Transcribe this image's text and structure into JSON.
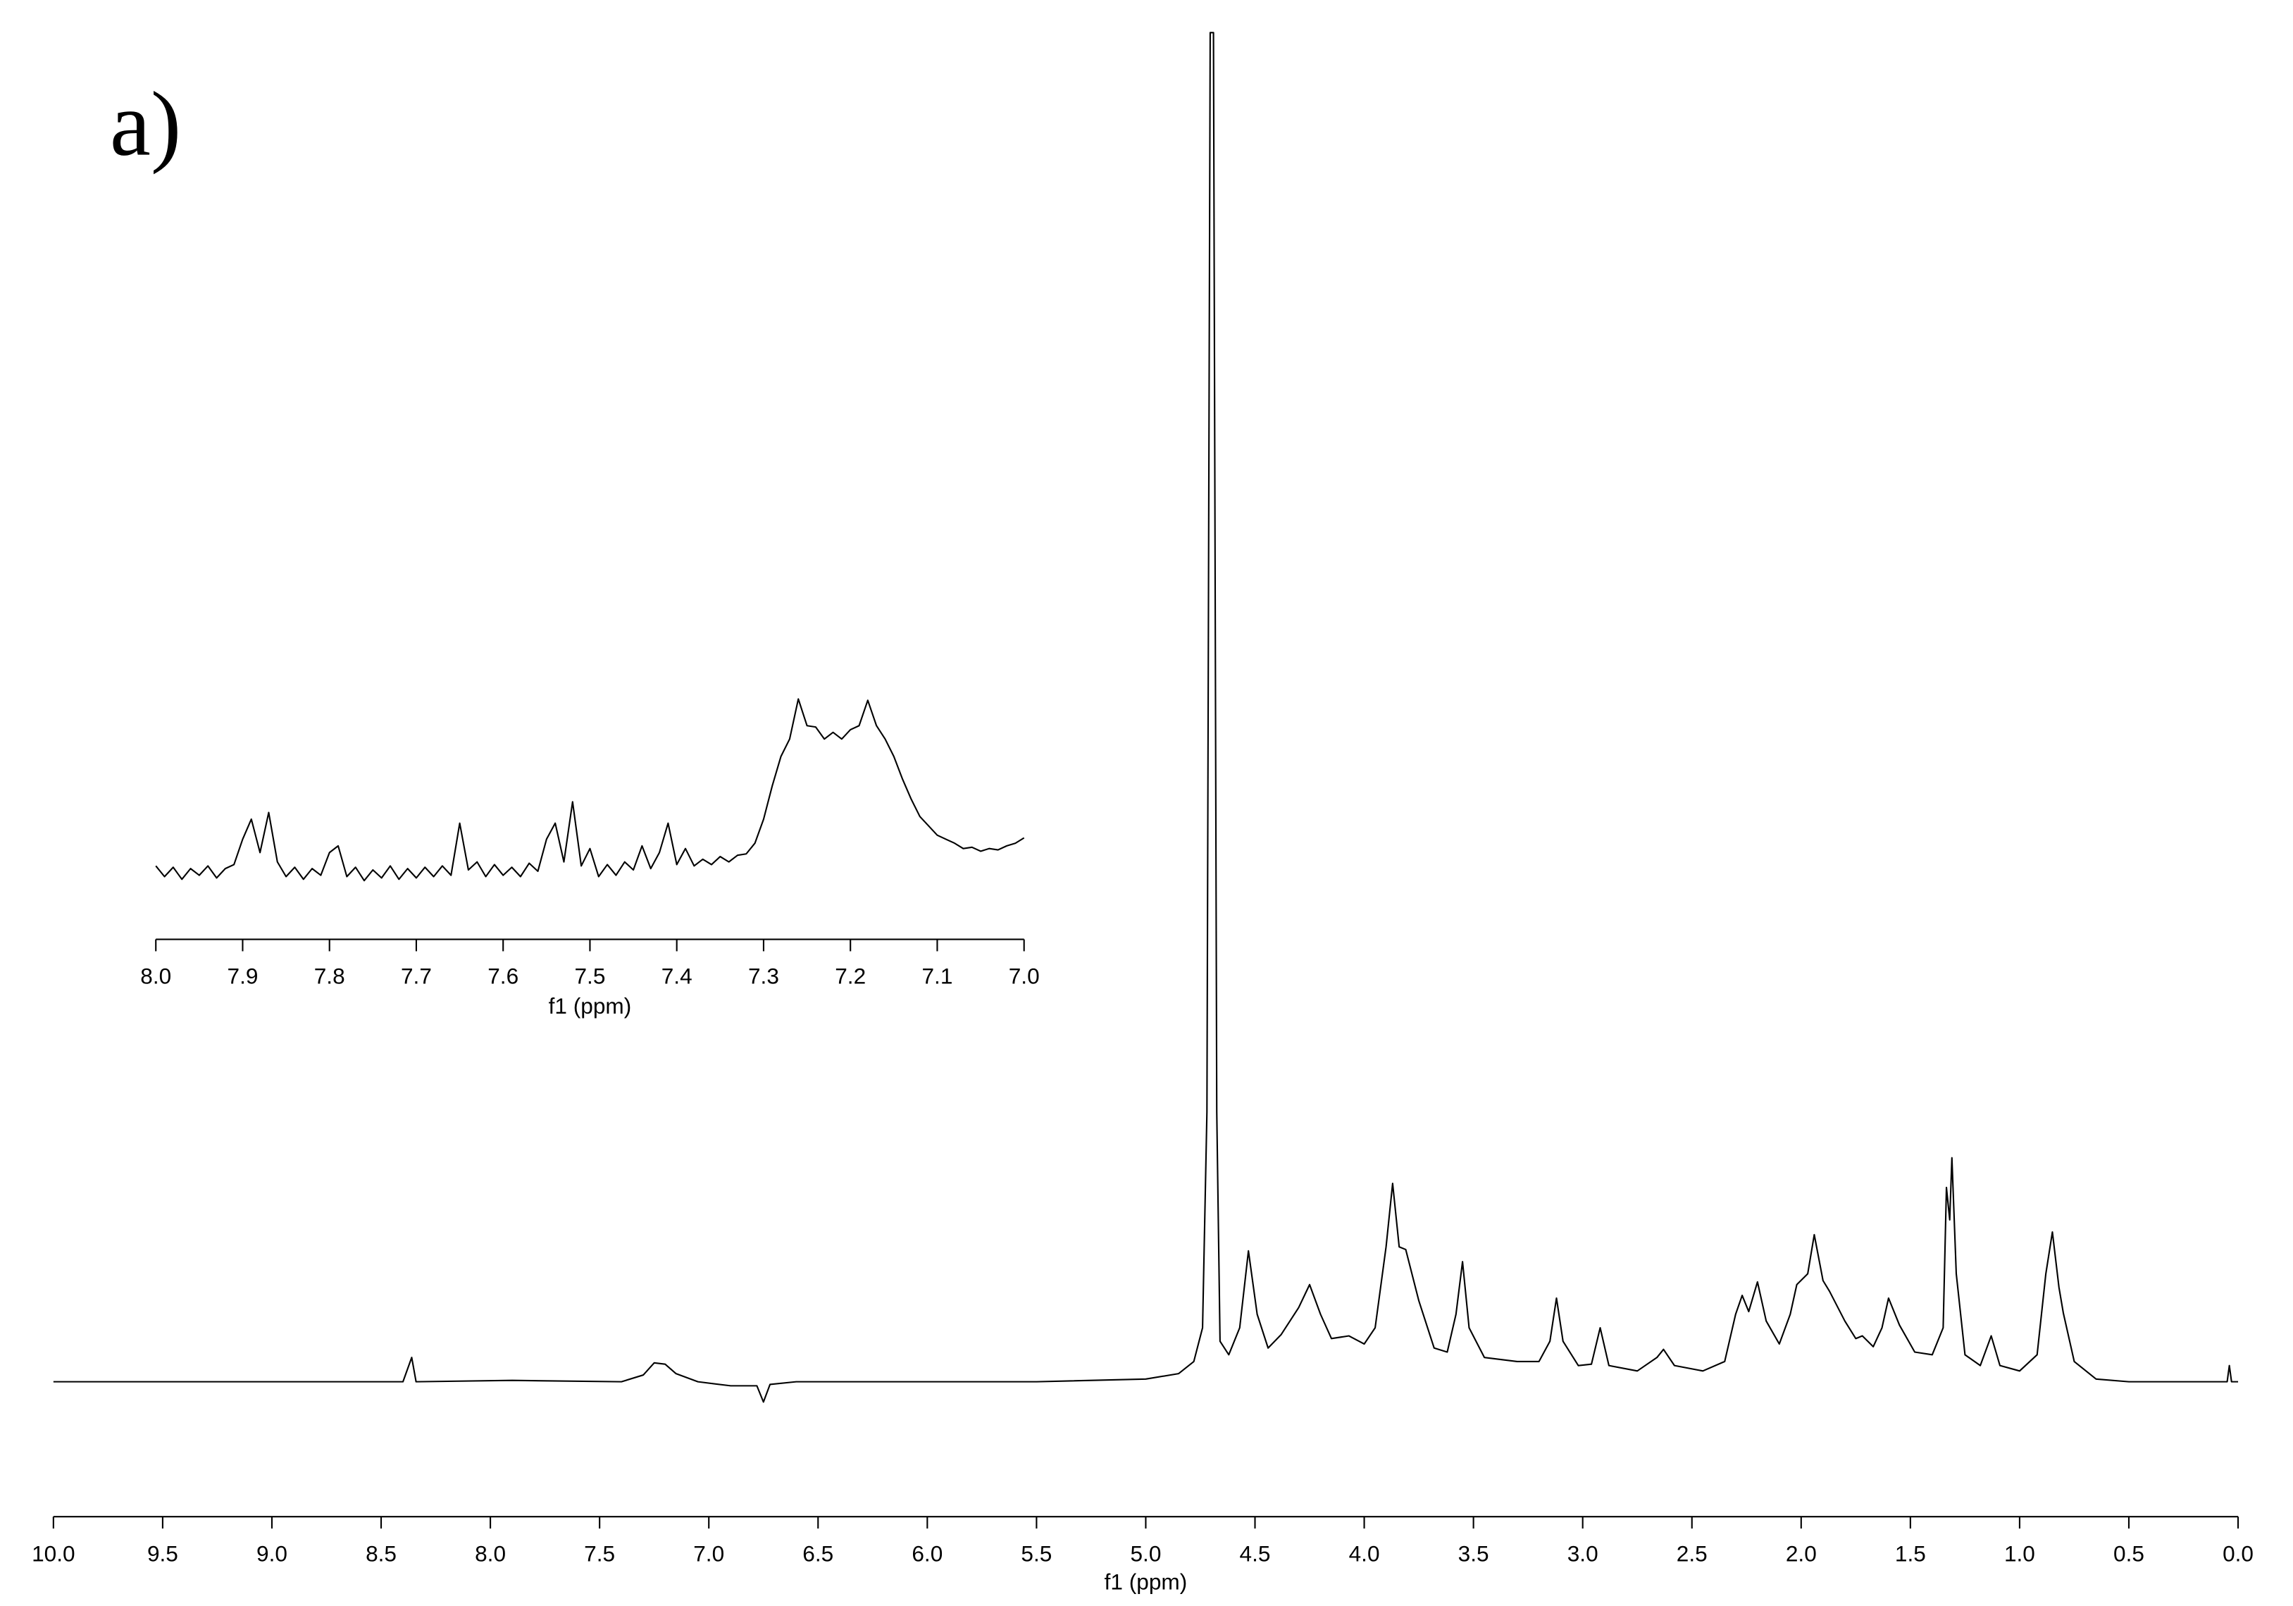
{
  "chart_data": [
    {
      "type": "line",
      "annotation": "a)",
      "x_label": "f1 (ppm)",
      "color": "#000000",
      "xlim": [
        10,
        0
      ],
      "ylim": [
        -10,
        100
      ],
      "xticks": [
        {
          "value": 10,
          "label": "10.0"
        },
        9.5,
        {
          "value": 9,
          "label": "9.0"
        },
        8.5,
        {
          "value": 8,
          "label": "8.0"
        },
        7.5,
        {
          "value": 7,
          "label": "7.0"
        },
        6.5,
        {
          "value": 6,
          "label": "6.0"
        },
        5.5,
        {
          "value": 5,
          "label": "5.0"
        },
        4.5,
        {
          "value": 4,
          "label": "4.0"
        },
        3.5,
        {
          "value": 3,
          "label": "3.0"
        },
        2.5,
        {
          "value": 2,
          "label": "2.0"
        },
        1.5,
        {
          "value": 1,
          "label": "1.0"
        },
        0.5,
        {
          "value": 0,
          "label": "0.0"
        }
      ],
      "x": [
        10.0,
        9.5,
        9.0,
        8.4,
        8.36,
        8.34,
        7.9,
        7.4,
        7.3,
        7.25,
        7.2,
        7.15,
        7.05,
        6.9,
        6.78,
        6.75,
        6.72,
        6.6,
        6.0,
        5.5,
        5.0,
        4.85,
        4.78,
        4.74,
        4.72,
        4.705,
        4.69,
        4.675,
        4.66,
        4.62,
        4.57,
        4.53,
        4.49,
        4.44,
        4.38,
        4.3,
        4.25,
        4.2,
        4.15,
        4.07,
        4.0,
        3.95,
        3.9,
        3.87,
        3.84,
        3.81,
        3.75,
        3.68,
        3.62,
        3.58,
        3.55,
        3.52,
        3.45,
        3.3,
        3.2,
        3.15,
        3.12,
        3.09,
        3.02,
        2.96,
        2.92,
        2.88,
        2.75,
        2.66,
        2.63,
        2.58,
        2.45,
        2.35,
        2.3,
        2.27,
        2.24,
        2.2,
        2.16,
        2.1,
        2.05,
        2.02,
        1.97,
        1.94,
        1.9,
        1.87,
        1.8,
        1.75,
        1.72,
        1.67,
        1.63,
        1.6,
        1.55,
        1.48,
        1.4,
        1.35,
        1.335,
        1.32,
        1.31,
        1.29,
        1.25,
        1.18,
        1.13,
        1.09,
        1.0,
        0.92,
        0.88,
        0.85,
        0.82,
        0.8,
        0.75,
        0.65,
        0.5,
        0.2,
        0.05,
        0.04,
        0.03,
        0.0
      ],
      "values": [
        0,
        0,
        0,
        0,
        1.8,
        0,
        0.1,
        0,
        0.5,
        1.4,
        1.3,
        0.6,
        0,
        -0.3,
        -0.3,
        -1.5,
        -0.2,
        0,
        0,
        0,
        0.2,
        0.6,
        1.5,
        4,
        20,
        100,
        100,
        20,
        3,
        2,
        4,
        9.7,
        5,
        2.5,
        3.5,
        5.5,
        7.2,
        5,
        3.2,
        3.4,
        2.8,
        4,
        10,
        14.7,
        10,
        9.8,
        6,
        2.5,
        2.2,
        5,
        8.9,
        4,
        1.8,
        1.5,
        1.5,
        3,
        6.2,
        3,
        1.2,
        1.3,
        4.0,
        1.2,
        0.8,
        1.8,
        2.4,
        1.2,
        0.8,
        1.5,
        5,
        6.4,
        5.2,
        7.4,
        4.5,
        2.8,
        5,
        7.2,
        8,
        10.9,
        7.5,
        6.7,
        4.5,
        3.2,
        3.4,
        2.6,
        4,
        6.2,
        4.2,
        2.2,
        2,
        4,
        14.4,
        12,
        16.6,
        8,
        2,
        1.2,
        3.4,
        1.2,
        0.8,
        2,
        8,
        11.1,
        7,
        5.1,
        1.5,
        0.2,
        0,
        0,
        0,
        1.2,
        0,
        0
      ]
    },
    {
      "type": "line",
      "x_label": "f1 (ppm)",
      "color": "#000000",
      "xlim": [
        8,
        7
      ],
      "ylim": [
        -5,
        15
      ],
      "xticks": [
        {
          "value": 8,
          "label": "8.0"
        },
        7.9,
        7.8,
        7.7,
        7.6,
        7.5,
        7.4,
        7.3,
        7.2,
        7.1,
        {
          "value": 7,
          "label": "7.0"
        }
      ],
      "x": [
        8.0,
        7.99,
        7.98,
        7.97,
        7.96,
        7.95,
        7.94,
        7.93,
        7.92,
        7.91,
        7.9,
        7.89,
        7.88,
        7.87,
        7.86,
        7.85,
        7.84,
        7.83,
        7.82,
        7.81,
        7.8,
        7.79,
        7.78,
        7.77,
        7.76,
        7.75,
        7.74,
        7.73,
        7.72,
        7.71,
        7.7,
        7.69,
        7.68,
        7.67,
        7.66,
        7.65,
        7.64,
        7.63,
        7.62,
        7.61,
        7.6,
        7.59,
        7.58,
        7.57,
        7.56,
        7.55,
        7.54,
        7.53,
        7.52,
        7.51,
        7.5,
        7.49,
        7.48,
        7.47,
        7.46,
        7.45,
        7.44,
        7.43,
        7.42,
        7.41,
        7.4,
        7.39,
        7.38,
        7.37,
        7.36,
        7.35,
        7.34,
        7.33,
        7.32,
        7.31,
        7.3,
        7.29,
        7.28,
        7.27,
        7.26,
        7.25,
        7.24,
        7.23,
        7.22,
        7.21,
        7.2,
        7.19,
        7.18,
        7.17,
        7.16,
        7.15,
        7.14,
        7.13,
        7.12,
        7.11,
        7.1,
        7.09,
        7.08,
        7.07,
        7.06,
        7.05,
        7.04,
        7.03,
        7.02,
        7.01,
        7.0
      ],
      "values": [
        0.5,
        -0.3,
        0.4,
        -0.5,
        0.3,
        -0.2,
        0.5,
        -0.4,
        0.3,
        0.6,
        2.5,
        4,
        1.5,
        4.5,
        0.8,
        -0.3,
        0.4,
        -0.5,
        0.3,
        -0.2,
        1.5,
        2,
        -0.3,
        0.4,
        -0.6,
        0.2,
        -0.4,
        0.5,
        -0.5,
        0.3,
        -0.4,
        0.4,
        -0.3,
        0.5,
        -0.2,
        3.7,
        0.2,
        0.8,
        -0.3,
        0.6,
        -0.2,
        0.4,
        -0.3,
        0.7,
        0.1,
        2.5,
        3.7,
        0.8,
        5.3,
        0.5,
        1.8,
        -0.3,
        0.6,
        -0.2,
        0.8,
        0.2,
        2,
        0.3,
        1.5,
        3.7,
        0.6,
        1.8,
        0.5,
        1,
        0.6,
        1.2,
        0.8,
        1.3,
        1.4,
        2.2,
        4,
        6.5,
        8.7,
        10,
        13,
        11,
        10.9,
        10,
        10.5,
        10,
        10.7,
        11,
        12.9,
        11,
        10,
        8.7,
        7,
        5.5,
        4.2,
        3.5,
        2.8,
        2.5,
        2.2,
        1.8,
        1.9,
        1.6,
        1.8,
        1.7,
        2,
        2.2,
        2.6
      ]
    }
  ]
}
